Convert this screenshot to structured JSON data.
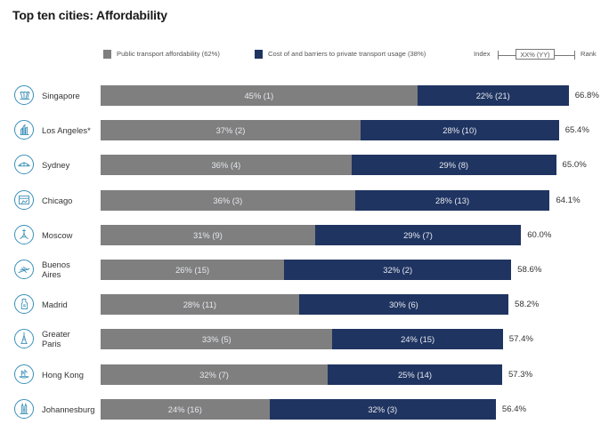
{
  "chart_data": {
    "type": "bar",
    "orientation": "horizontal",
    "stacked": true,
    "title": "Top ten cities: Affordability",
    "xlabel": "",
    "ylabel": "",
    "xlim": [
      0,
      70
    ],
    "grid": false,
    "legend_position": "top-right",
    "colors": {
      "public": "#7f7f7f",
      "private": "#1f3461"
    },
    "legend": {
      "series": [
        {
          "name": "Public transport affordability (62%)",
          "color": "#7f7f7f"
        },
        {
          "name": "Cost of and barriers to private transport usage (38%)",
          "color": "#1f3461"
        }
      ],
      "key": {
        "left": "Index",
        "box": "XX% (YY)",
        "right": "Rank"
      }
    },
    "categories": [
      "Singapore",
      "Los Angeles*",
      "Sydney",
      "Chicago",
      "Moscow",
      "Buenos Aires",
      "Madrid",
      "Greater Paris",
      "Hong Kong",
      "Johannesburg"
    ],
    "category_lines": [
      [
        "Singapore"
      ],
      [
        "Los Angeles*"
      ],
      [
        "Sydney"
      ],
      [
        "Chicago"
      ],
      [
        "Moscow"
      ],
      [
        "Buenos",
        "Aires"
      ],
      [
        "Madrid"
      ],
      [
        "Greater",
        "Paris"
      ],
      [
        "Hong Kong"
      ],
      [
        "Johannesburg"
      ]
    ],
    "icons": [
      "supertrees-icon",
      "skyline-icon",
      "harbour-bridge-icon",
      "city-window-icon",
      "tower-icon",
      "bridge-icon",
      "statue-icon",
      "eiffel-tower-icon",
      "junk-boat-icon",
      "towers-icon"
    ],
    "series": [
      {
        "name": "Public transport affordability",
        "values": [
          45,
          37,
          36,
          36,
          31,
          26,
          28,
          33,
          32,
          24
        ],
        "ranks": [
          1,
          2,
          4,
          3,
          9,
          15,
          11,
          5,
          7,
          16
        ],
        "labels": [
          "45% (1)",
          "37% (2)",
          "36% (4)",
          "36% (3)",
          "31% (9)",
          "26% (15)",
          "28% (11)",
          "33% (5)",
          "32% (7)",
          "24% (16)"
        ],
        "bar_extent": [
          45.2,
          37.1,
          35.8,
          36.3,
          30.6,
          26.2,
          28.3,
          33.1,
          32.4,
          24.1
        ]
      },
      {
        "name": "Cost of and barriers to private transport usage",
        "values": [
          22,
          28,
          29,
          28,
          29,
          32,
          30,
          24,
          25,
          32
        ],
        "ranks": [
          21,
          10,
          8,
          13,
          7,
          2,
          6,
          15,
          14,
          3
        ],
        "labels": [
          "22% (21)",
          "28% (10)",
          "29% (8)",
          "28% (13)",
          "29% (7)",
          "32% (2)",
          "30% (6)",
          "24% (15)",
          "25% (14)",
          "32% (3)"
        ]
      }
    ],
    "index": [
      66.8,
      65.4,
      65.0,
      64.1,
      60.0,
      58.6,
      58.2,
      57.4,
      57.3,
      56.4
    ],
    "index_labels": [
      "66.8%",
      "65.4%",
      "65.0%",
      "64.1%",
      "60.0%",
      "58.6%",
      "58.2%",
      "57.4%",
      "57.3%",
      "56.4%"
    ]
  }
}
